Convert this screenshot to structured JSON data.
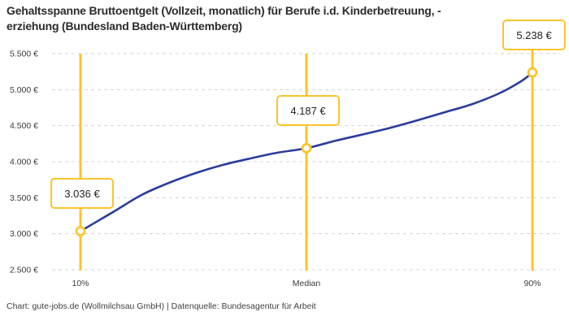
{
  "header": {
    "line1": "Gehaltsspanne Bruttoentgelt (Vollzeit, monatlich) für Berufe i.d. Kinderbetreuung, -",
    "line2": "erziehung (Bundesland Baden-Württemberg)"
  },
  "footer": {
    "text": "Chart: gute-jobs.de (Wollmilchsau GmbH) | Datenquelle: Bundesagentur für Arbeit"
  },
  "colors": {
    "accent_yellow": "#FCC42A",
    "line_blue": "#2A3C9B",
    "grid": "#D4D4D4",
    "title_text": "#2B2B2B",
    "axis_text": "#3B3B3B",
    "marker_fill": "#FFFFFF"
  },
  "chart_data": {
    "type": "line",
    "title": "Gehaltsspanne Bruttoentgelt (Vollzeit, monatlich) für Berufe i.d. Kinderbetreuung, -erziehung (Bundesland Baden-Württemberg)",
    "xlabel": "",
    "ylabel": "",
    "ylim": [
      2500,
      5500
    ],
    "grid": "dashed-horizontal",
    "legend": "none",
    "y_ticks": [
      {
        "value": 5500,
        "label": "5.500 €"
      },
      {
        "value": 5000,
        "label": "5.000 €"
      },
      {
        "value": 4500,
        "label": "4.500 €"
      },
      {
        "value": 4000,
        "label": "4.000 €"
      },
      {
        "value": 3500,
        "label": "3.500 €"
      },
      {
        "value": 3000,
        "label": "3.000 €"
      },
      {
        "value": 2500,
        "label": "2.500 €"
      }
    ],
    "x_ticks": [
      {
        "pos": 0,
        "label": "10%"
      },
      {
        "pos": 0.5,
        "label": "Median"
      },
      {
        "pos": 1,
        "label": "90%"
      }
    ],
    "highlights": [
      {
        "pos": 0,
        "value": 3036,
        "label": "3.036 €",
        "percentile": "10%"
      },
      {
        "pos": 0.5,
        "value": 4187,
        "label": "4.187 €",
        "percentile": "Median"
      },
      {
        "pos": 1,
        "value": 5238,
        "label": "5.238 €",
        "percentile": "90%"
      }
    ],
    "curve_points": [
      [
        0.0,
        3036
      ],
      [
        0.075,
        3312
      ],
      [
        0.135,
        3538
      ],
      [
        0.196,
        3707
      ],
      [
        0.255,
        3842
      ],
      [
        0.315,
        3955
      ],
      [
        0.376,
        4045
      ],
      [
        0.435,
        4124
      ],
      [
        0.5,
        4187
      ],
      [
        0.566,
        4293
      ],
      [
        0.628,
        4383
      ],
      [
        0.687,
        4473
      ],
      [
        0.746,
        4575
      ],
      [
        0.807,
        4688
      ],
      [
        0.867,
        4800
      ],
      [
        0.926,
        4947
      ],
      [
        0.975,
        5116
      ],
      [
        1.0,
        5238
      ]
    ]
  }
}
